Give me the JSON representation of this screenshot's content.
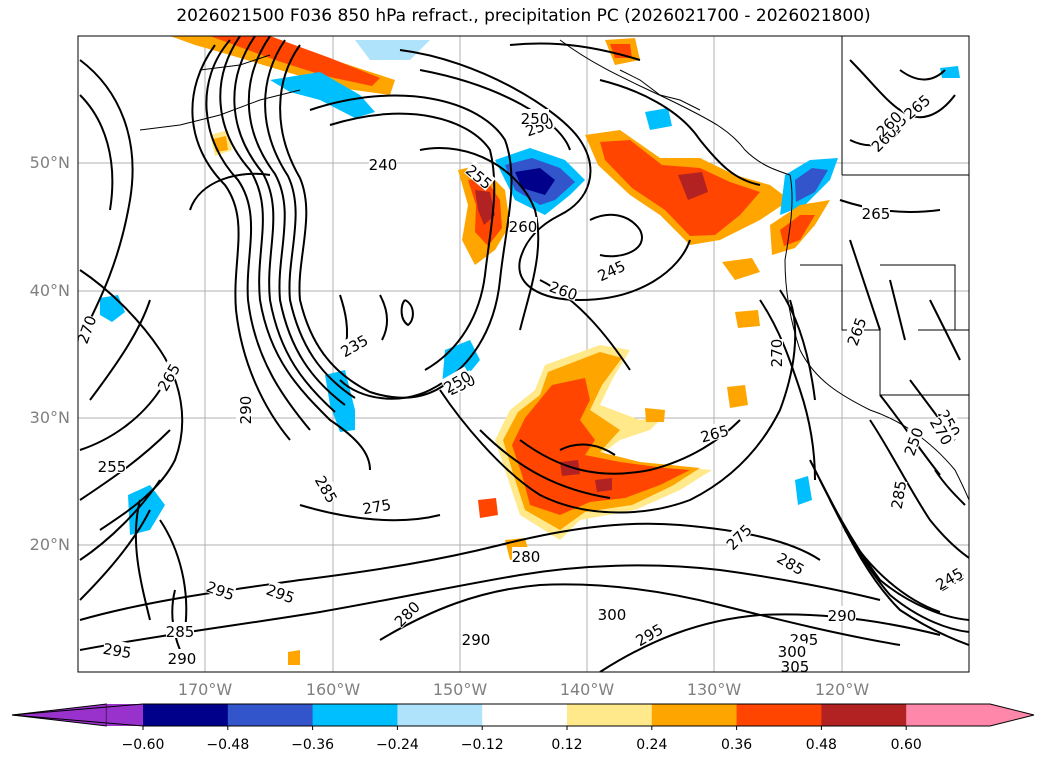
{
  "title": "2026021500 F036 850 hPa refract., precipitation PC (2026021700 - 2026021800)",
  "lat_labels": [
    "50°N",
    "40°N",
    "30°N",
    "20°N"
  ],
  "lon_labels": [
    "170°W",
    "160°W",
    "150°W",
    "140°W",
    "130°W",
    "120°W"
  ],
  "colorbar": {
    "ticks": [
      "−0.60",
      "−0.48",
      "−0.36",
      "−0.24",
      "−0.12",
      "0.12",
      "0.24",
      "0.36",
      "0.48",
      "0.60"
    ],
    "colors": [
      "#9932cc",
      "#00008b",
      "#3355cc",
      "#00bfff",
      "#aee3fb",
      "#ffffff",
      "#ffe98a",
      "#ffa500",
      "#ff4500",
      "#b22222",
      "#ff88aa"
    ]
  },
  "contour_labels": [
    "250",
    "240",
    "255",
    "260",
    "245",
    "260",
    "265",
    "265",
    "250",
    "250",
    "270",
    "235",
    "250",
    "265",
    "290",
    "270",
    "265",
    "260",
    "255",
    "265",
    "285",
    "275",
    "280",
    "300",
    "295",
    "275",
    "285",
    "290",
    "295",
    "300",
    "305",
    "295",
    "295",
    "285",
    "290",
    "295",
    "280",
    "290",
    "250",
    "245",
    "265",
    "270",
    "250",
    "285",
    "245",
    "260"
  ],
  "colors": {
    "contour": "#000000",
    "grid": "#b0b0b0",
    "axis_label": "#808080",
    "coast": "#000000"
  }
}
